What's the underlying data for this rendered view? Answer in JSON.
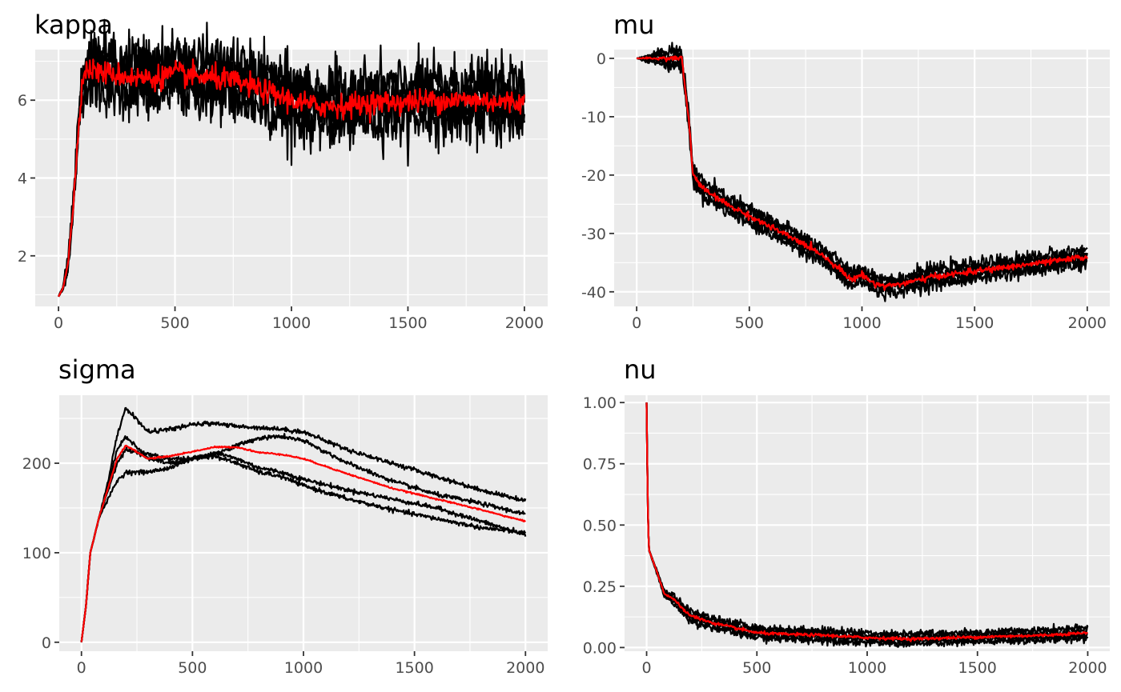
{
  "chart_data": [
    {
      "type": "line",
      "title": "kappa",
      "x_range": [
        -100,
        2100
      ],
      "ylim": [
        0.7,
        7.3
      ],
      "x_ticks": [
        0,
        500,
        1000,
        1500,
        2000
      ],
      "y_ticks": [
        2,
        4,
        6
      ],
      "x_tick_labels": [
        "0",
        "500",
        "1000",
        "1500",
        "2000"
      ],
      "y_tick_labels": [
        "2",
        "4",
        "6"
      ],
      "grid": true,
      "colors": {
        "chains": "#000000",
        "mean": "#ff0000"
      },
      "chain_band": 0.45,
      "chain_noise": 0.35,
      "mean_noise": 0.15,
      "series": [
        {
          "role": "chains",
          "x": [
            0,
            20,
            40,
            60,
            80,
            100,
            120,
            200,
            300,
            400,
            500,
            600,
            700,
            800,
            900,
            1000,
            1100,
            1200,
            1300,
            1400,
            1500,
            1600,
            1700,
            1800,
            1900,
            2000
          ],
          "values": [
            0.95,
            1.2,
            1.8,
            3.0,
            4.8,
            6.4,
            6.8,
            6.7,
            6.6,
            6.55,
            6.7,
            6.6,
            6.55,
            6.4,
            6.2,
            6.0,
            5.85,
            5.85,
            5.9,
            5.95,
            5.95,
            6.0,
            6.0,
            6.0,
            5.95,
            5.95
          ]
        },
        {
          "role": "mean",
          "x": [
            0,
            20,
            40,
            60,
            80,
            100,
            120,
            200,
            300,
            400,
            500,
            600,
            700,
            800,
            900,
            1000,
            1100,
            1200,
            1300,
            1400,
            1500,
            1600,
            1700,
            1800,
            1900,
            2000
          ],
          "values": [
            0.95,
            1.2,
            1.8,
            3.0,
            4.8,
            6.4,
            6.8,
            6.7,
            6.6,
            6.55,
            6.7,
            6.6,
            6.55,
            6.4,
            6.2,
            6.0,
            5.85,
            5.85,
            5.9,
            5.95,
            5.95,
            6.0,
            6.0,
            6.0,
            5.95,
            5.95
          ]
        }
      ]
    },
    {
      "type": "line",
      "title": "mu",
      "x_range": [
        -100,
        2100
      ],
      "ylim": [
        -42.5,
        1.5
      ],
      "x_ticks": [
        0,
        500,
        1000,
        1500,
        2000
      ],
      "y_ticks": [
        0,
        -10,
        -20,
        -30,
        -40
      ],
      "x_tick_labels": [
        "0",
        "500",
        "1000",
        "1500",
        "2000"
      ],
      "y_tick_labels": [
        "0",
        "-10",
        "-20",
        "-30",
        "-40"
      ],
      "grid": true,
      "colors": {
        "chains": "#000000",
        "mean": "#ff0000"
      },
      "chain_band": 1.2,
      "chain_noise": 0.6,
      "mean_noise": 0.25,
      "series": [
        {
          "role": "chains",
          "x": [
            0,
            200,
            230,
            250,
            300,
            400,
            500,
            600,
            700,
            800,
            900,
            950,
            1000,
            1050,
            1100,
            1200,
            1300,
            1400,
            1500,
            1600,
            1700,
            1800,
            1900,
            2000
          ],
          "values": [
            0,
            0,
            -10,
            -20,
            -22.5,
            -25,
            -27,
            -29,
            -31,
            -33,
            -36,
            -38,
            -37,
            -38.5,
            -39,
            -38.5,
            -37.5,
            -37,
            -36.5,
            -36,
            -35.5,
            -35,
            -34.5,
            -34
          ]
        },
        {
          "role": "mean",
          "x": [
            0,
            200,
            230,
            250,
            300,
            400,
            500,
            600,
            700,
            800,
            900,
            950,
            1000,
            1050,
            1100,
            1200,
            1300,
            1400,
            1500,
            1600,
            1700,
            1800,
            1900,
            2000
          ],
          "values": [
            0,
            0,
            -10,
            -20,
            -22.5,
            -25,
            -27,
            -29,
            -31,
            -33,
            -36,
            -38,
            -37,
            -38.5,
            -39,
            -38.5,
            -37.5,
            -37,
            -36.5,
            -36,
            -35.5,
            -35,
            -34.5,
            -34
          ]
        }
      ]
    },
    {
      "type": "line",
      "title": "sigma",
      "x_range": [
        -100,
        2100
      ],
      "ylim": [
        -10,
        276
      ],
      "x_ticks": [
        0,
        500,
        1000,
        1500,
        2000
      ],
      "y_ticks": [
        0,
        100,
        200
      ],
      "x_tick_labels": [
        "0",
        "500",
        "1000",
        "1500",
        "2000"
      ],
      "y_tick_labels": [
        "0",
        "100",
        "200"
      ],
      "grid": true,
      "colors": {
        "chains": "#000000",
        "mean": "#ff0000"
      },
      "chain_band": 0,
      "chain_noise": 1.2,
      "mean_noise": 0.4,
      "series": [
        {
          "role": "chains",
          "x": [
            0,
            20,
            40,
            80,
            120,
            160,
            200,
            300,
            400,
            500,
            600,
            700,
            800,
            900,
            1000,
            1200,
            1400,
            1600,
            1800,
            2000
          ],
          "values": [
            0,
            40,
            100,
            140,
            180,
            230,
            262,
            235,
            238,
            243,
            245,
            241,
            240,
            238,
            235,
            215,
            200,
            185,
            170,
            158
          ]
        },
        {
          "role": "chains",
          "x": [
            0,
            20,
            40,
            80,
            120,
            160,
            200,
            300,
            400,
            500,
            600,
            700,
            800,
            900,
            1000,
            1200,
            1400,
            1600,
            1800,
            2000
          ],
          "values": [
            0,
            40,
            100,
            140,
            175,
            215,
            230,
            205,
            200,
            205,
            210,
            220,
            228,
            230,
            225,
            200,
            180,
            165,
            155,
            143
          ]
        },
        {
          "role": "chains",
          "x": [
            0,
            20,
            40,
            80,
            120,
            160,
            200,
            300,
            400,
            500,
            600,
            700,
            800,
            900,
            1000,
            1200,
            1400,
            1600,
            1800,
            2000
          ],
          "values": [
            0,
            40,
            100,
            140,
            170,
            200,
            215,
            210,
            205,
            205,
            212,
            205,
            195,
            190,
            182,
            170,
            160,
            150,
            135,
            120
          ]
        },
        {
          "role": "chains",
          "x": [
            0,
            20,
            40,
            80,
            120,
            160,
            200,
            300,
            400,
            500,
            600,
            700,
            800,
            900,
            1000,
            1200,
            1400,
            1600,
            1800,
            2000
          ],
          "values": [
            0,
            40,
            100,
            140,
            160,
            180,
            190,
            190,
            195,
            205,
            208,
            200,
            190,
            185,
            175,
            160,
            148,
            138,
            128,
            122
          ]
        },
        {
          "role": "mean",
          "x": [
            0,
            20,
            40,
            80,
            120,
            160,
            200,
            300,
            400,
            500,
            600,
            700,
            800,
            900,
            1000,
            1200,
            1400,
            1600,
            1800,
            2000
          ],
          "values": [
            0,
            40,
            100,
            140,
            172,
            205,
            220,
            205,
            208,
            213,
            218,
            218,
            212,
            210,
            205,
            188,
            172,
            160,
            148,
            135
          ]
        }
      ]
    },
    {
      "type": "line",
      "title": "nu",
      "x_range": [
        -100,
        2100
      ],
      "ylim": [
        -0.015,
        1.03
      ],
      "x_ticks": [
        0,
        500,
        1000,
        1500,
        2000
      ],
      "y_ticks": [
        0,
        0.25,
        0.5,
        0.75,
        1
      ],
      "x_tick_labels": [
        "0",
        "500",
        "1000",
        "1500",
        "2000"
      ],
      "y_tick_labels": [
        "0.00",
        "0.25",
        "0.50",
        "0.75",
        "1.00"
      ],
      "grid": true,
      "colors": {
        "chains": "#000000",
        "mean": "#ff0000"
      },
      "chain_band": 0.02,
      "chain_noise": 0.008,
      "mean_noise": 0.003,
      "series": [
        {
          "role": "chains",
          "x": [
            0,
            5,
            10,
            30,
            50,
            80,
            120,
            160,
            200,
            300,
            400,
            500,
            600,
            800,
            1000,
            1200,
            1400,
            1600,
            1800,
            2000
          ],
          "values": [
            1.0,
            0.6,
            0.4,
            0.35,
            0.3,
            0.22,
            0.2,
            0.16,
            0.13,
            0.1,
            0.08,
            0.06,
            0.055,
            0.05,
            0.04,
            0.035,
            0.04,
            0.045,
            0.05,
            0.06
          ]
        },
        {
          "role": "mean",
          "x": [
            0,
            5,
            10,
            30,
            50,
            80,
            120,
            160,
            200,
            300,
            400,
            500,
            600,
            800,
            1000,
            1200,
            1400,
            1600,
            1800,
            2000
          ],
          "values": [
            1.0,
            0.6,
            0.4,
            0.35,
            0.3,
            0.22,
            0.2,
            0.16,
            0.13,
            0.1,
            0.08,
            0.06,
            0.055,
            0.05,
            0.04,
            0.035,
            0.04,
            0.045,
            0.05,
            0.06
          ]
        }
      ]
    }
  ]
}
